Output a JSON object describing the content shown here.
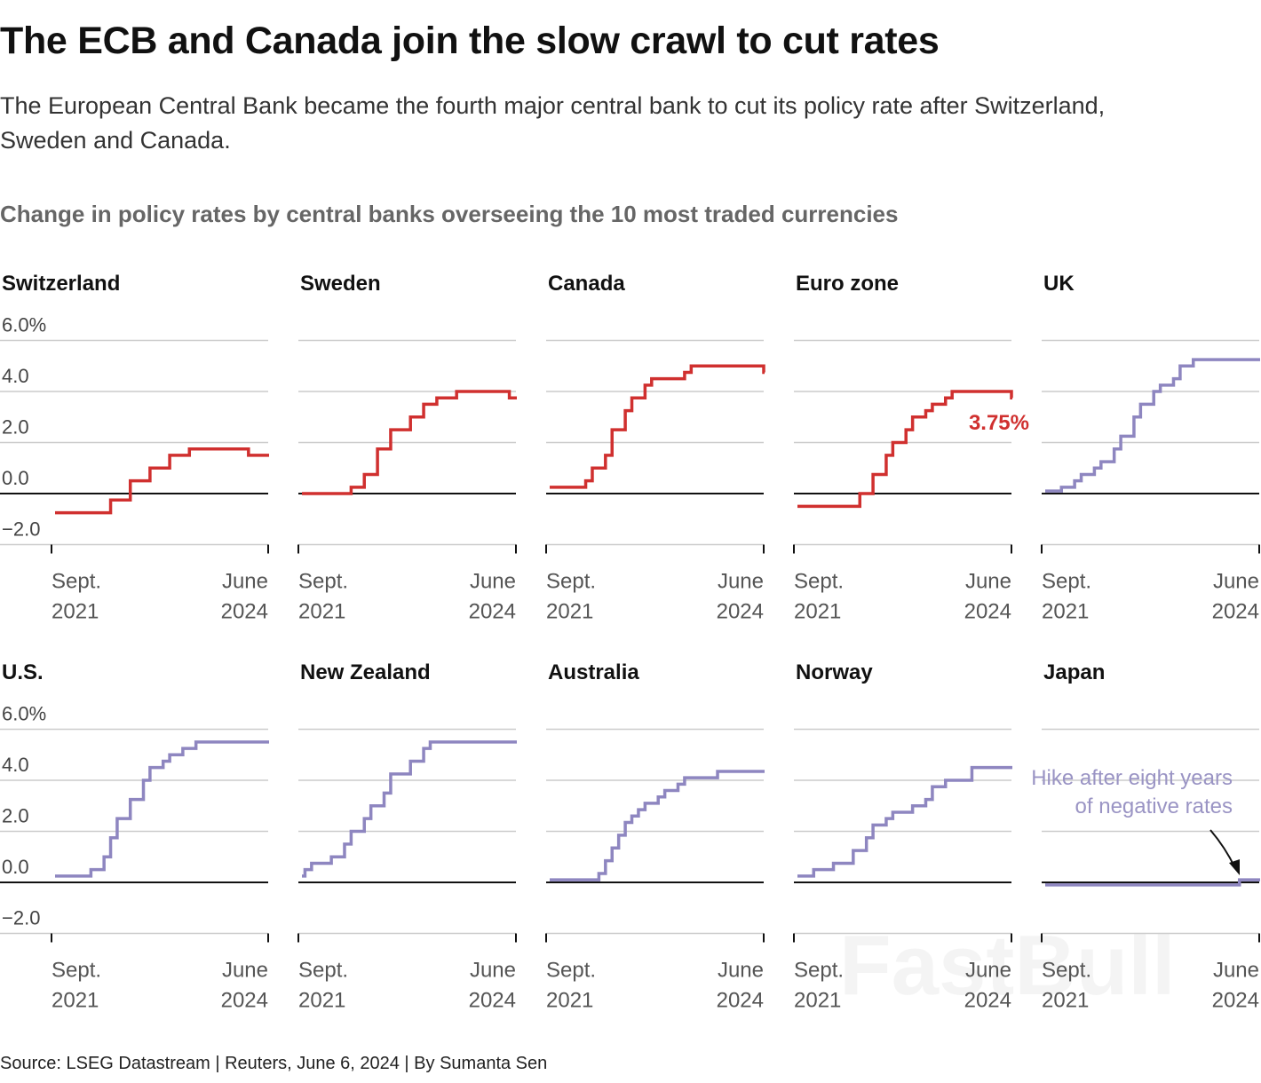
{
  "header": {
    "title": "The ECB and Canada join the slow crawl to cut rates",
    "subtitle_line1": "The European Central Bank became the fourth major central bank to cut its policy rate after Switzerland,",
    "subtitle_line2": "Sweden and Canada.",
    "chart_title": "Change in policy rates by central banks overseeing the 10 most traded currencies"
  },
  "footer": {
    "source": "Source: LSEG Datastream | Reuters, June 6, 2024 | By Sumanta Sen"
  },
  "watermark": "FastBull",
  "colors": {
    "cut": "#d0302f",
    "no_cut": "#8e86c0",
    "grid": "#cccccc",
    "zero": "#111111"
  },
  "chart_data": {
    "type": "line",
    "step": true,
    "ylim": [
      -2,
      6
    ],
    "yticks": [
      6,
      4,
      2,
      0,
      -2
    ],
    "ytick_labels": [
      "6.0%",
      "4.0",
      "2.0",
      "0.0",
      "−2.0"
    ],
    "xlim": [
      "2021-09",
      "2024-06"
    ],
    "xtick_labels": [
      [
        "Sept.",
        "2021"
      ],
      [
        "June",
        "2024"
      ]
    ],
    "grid": true,
    "panels": [
      {
        "name": "Switzerland",
        "color": "cut",
        "steps": [
          [
            "2021-09",
            -0.75
          ],
          [
            "2022-06",
            -0.25
          ],
          [
            "2022-09",
            0.5
          ],
          [
            "2022-12",
            1.0
          ],
          [
            "2023-03",
            1.5
          ],
          [
            "2023-06",
            1.75
          ],
          [
            "2024-03",
            1.5
          ]
        ]
      },
      {
        "name": "Sweden",
        "color": "cut",
        "steps": [
          [
            "2021-09",
            0.0
          ],
          [
            "2022-05",
            0.25
          ],
          [
            "2022-07",
            0.75
          ],
          [
            "2022-09",
            1.75
          ],
          [
            "2022-11",
            2.5
          ],
          [
            "2023-02",
            3.0
          ],
          [
            "2023-04",
            3.5
          ],
          [
            "2023-06",
            3.75
          ],
          [
            "2023-09",
            4.0
          ],
          [
            "2024-05",
            3.75
          ]
        ]
      },
      {
        "name": "Canada",
        "color": "cut",
        "steps": [
          [
            "2021-09",
            0.25
          ],
          [
            "2022-03",
            0.5
          ],
          [
            "2022-04",
            1.0
          ],
          [
            "2022-06",
            1.5
          ],
          [
            "2022-07",
            2.5
          ],
          [
            "2022-09",
            3.25
          ],
          [
            "2022-10",
            3.75
          ],
          [
            "2022-12",
            4.25
          ],
          [
            "2023-01",
            4.5
          ],
          [
            "2023-06",
            4.75
          ],
          [
            "2023-07",
            5.0
          ],
          [
            "2024-06",
            4.75
          ]
        ]
      },
      {
        "name": "Euro zone",
        "color": "cut",
        "label": "3.75%",
        "steps": [
          [
            "2021-09",
            -0.5
          ],
          [
            "2022-07",
            0.0
          ],
          [
            "2022-09",
            0.75
          ],
          [
            "2022-11",
            1.5
          ],
          [
            "2022-12",
            2.0
          ],
          [
            "2023-02",
            2.5
          ],
          [
            "2023-03",
            3.0
          ],
          [
            "2023-05",
            3.25
          ],
          [
            "2023-06",
            3.5
          ],
          [
            "2023-08",
            3.75
          ],
          [
            "2023-09",
            4.0
          ],
          [
            "2024-06",
            3.75
          ]
        ]
      },
      {
        "name": "UK",
        "color": "no_cut",
        "steps": [
          [
            "2021-09",
            0.1
          ],
          [
            "2021-12",
            0.25
          ],
          [
            "2022-02",
            0.5
          ],
          [
            "2022-03",
            0.75
          ],
          [
            "2022-05",
            1.0
          ],
          [
            "2022-06",
            1.25
          ],
          [
            "2022-08",
            1.75
          ],
          [
            "2022-09",
            2.25
          ],
          [
            "2022-11",
            3.0
          ],
          [
            "2022-12",
            3.5
          ],
          [
            "2023-02",
            4.0
          ],
          [
            "2023-03",
            4.25
          ],
          [
            "2023-05",
            4.5
          ],
          [
            "2023-06",
            5.0
          ],
          [
            "2023-08",
            5.25
          ]
        ]
      },
      {
        "name": "U.S.",
        "color": "no_cut",
        "steps": [
          [
            "2021-09",
            0.25
          ],
          [
            "2022-03",
            0.5
          ],
          [
            "2022-05",
            1.0
          ],
          [
            "2022-06",
            1.75
          ],
          [
            "2022-07",
            2.5
          ],
          [
            "2022-09",
            3.25
          ],
          [
            "2022-11",
            4.0
          ],
          [
            "2022-12",
            4.5
          ],
          [
            "2023-02",
            4.75
          ],
          [
            "2023-03",
            5.0
          ],
          [
            "2023-05",
            5.25
          ],
          [
            "2023-07",
            5.5
          ]
        ]
      },
      {
        "name": "New Zealand",
        "color": "no_cut",
        "steps": [
          [
            "2021-09",
            0.25
          ],
          [
            "2021-10",
            0.5
          ],
          [
            "2021-11",
            0.75
          ],
          [
            "2022-02",
            1.0
          ],
          [
            "2022-04",
            1.5
          ],
          [
            "2022-05",
            2.0
          ],
          [
            "2022-07",
            2.5
          ],
          [
            "2022-08",
            3.0
          ],
          [
            "2022-10",
            3.5
          ],
          [
            "2022-11",
            4.25
          ],
          [
            "2023-02",
            4.75
          ],
          [
            "2023-04",
            5.25
          ],
          [
            "2023-05",
            5.5
          ]
        ]
      },
      {
        "name": "Australia",
        "color": "no_cut",
        "steps": [
          [
            "2021-09",
            0.1
          ],
          [
            "2022-05",
            0.35
          ],
          [
            "2022-06",
            0.85
          ],
          [
            "2022-07",
            1.35
          ],
          [
            "2022-08",
            1.85
          ],
          [
            "2022-09",
            2.35
          ],
          [
            "2022-10",
            2.6
          ],
          [
            "2022-11",
            2.85
          ],
          [
            "2022-12",
            3.1
          ],
          [
            "2023-02",
            3.35
          ],
          [
            "2023-03",
            3.6
          ],
          [
            "2023-05",
            3.85
          ],
          [
            "2023-06",
            4.1
          ],
          [
            "2023-11",
            4.35
          ]
        ]
      },
      {
        "name": "Norway",
        "color": "no_cut",
        "steps": [
          [
            "2021-09",
            0.25
          ],
          [
            "2021-12",
            0.5
          ],
          [
            "2022-03",
            0.75
          ],
          [
            "2022-06",
            1.25
          ],
          [
            "2022-08",
            1.75
          ],
          [
            "2022-09",
            2.25
          ],
          [
            "2022-11",
            2.5
          ],
          [
            "2022-12",
            2.75
          ],
          [
            "2023-03",
            3.0
          ],
          [
            "2023-05",
            3.25
          ],
          [
            "2023-06",
            3.75
          ],
          [
            "2023-08",
            4.0
          ],
          [
            "2023-12",
            4.5
          ]
        ]
      },
      {
        "name": "Japan",
        "color": "no_cut",
        "annotation": [
          "Hike after eight years",
          "of negative rates"
        ],
        "steps": [
          [
            "2021-09",
            -0.1
          ],
          [
            "2024-03",
            0.1
          ]
        ]
      }
    ]
  }
}
